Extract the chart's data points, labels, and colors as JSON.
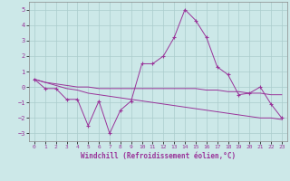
{
  "title": "",
  "xlabel": "Windchill (Refroidissement éolien,°C)",
  "ylabel": "",
  "background_color": "#cce8e8",
  "grid_color": "#aacccc",
  "line_color": "#993399",
  "line_color2": "#aa22aa",
  "xlim": [
    -0.5,
    23.5
  ],
  "ylim": [
    -3.5,
    5.5
  ],
  "yticks": [
    -3,
    -2,
    -1,
    0,
    1,
    2,
    3,
    4,
    5
  ],
  "xticks": [
    0,
    1,
    2,
    3,
    4,
    5,
    6,
    7,
    8,
    9,
    10,
    11,
    12,
    13,
    14,
    15,
    16,
    17,
    18,
    19,
    20,
    21,
    22,
    23
  ],
  "hours": [
    0,
    1,
    2,
    3,
    4,
    5,
    6,
    7,
    8,
    9,
    10,
    11,
    12,
    13,
    14,
    15,
    16,
    17,
    18,
    19,
    20,
    21,
    22,
    23
  ],
  "main_line": [
    0.5,
    -0.1,
    -0.1,
    -0.8,
    -0.8,
    -2.5,
    -0.9,
    -3.0,
    -1.5,
    -0.9,
    1.5,
    1.5,
    2.0,
    3.2,
    5.0,
    4.3,
    3.2,
    1.3,
    0.8,
    -0.5,
    -0.4,
    0.0,
    -1.1,
    -2.0
  ],
  "smooth_line1": [
    0.5,
    0.3,
    0.2,
    0.1,
    0.0,
    0.0,
    -0.1,
    -0.1,
    -0.1,
    -0.1,
    -0.1,
    -0.1,
    -0.1,
    -0.1,
    -0.1,
    -0.1,
    -0.2,
    -0.2,
    -0.3,
    -0.3,
    -0.4,
    -0.4,
    -0.5,
    -0.5
  ],
  "smooth_line2": [
    0.5,
    0.3,
    0.1,
    -0.1,
    -0.2,
    -0.4,
    -0.5,
    -0.6,
    -0.7,
    -0.8,
    -0.9,
    -1.0,
    -1.1,
    -1.2,
    -1.3,
    -1.4,
    -1.5,
    -1.6,
    -1.7,
    -1.8,
    -1.9,
    -2.0,
    -2.0,
    -2.1
  ]
}
